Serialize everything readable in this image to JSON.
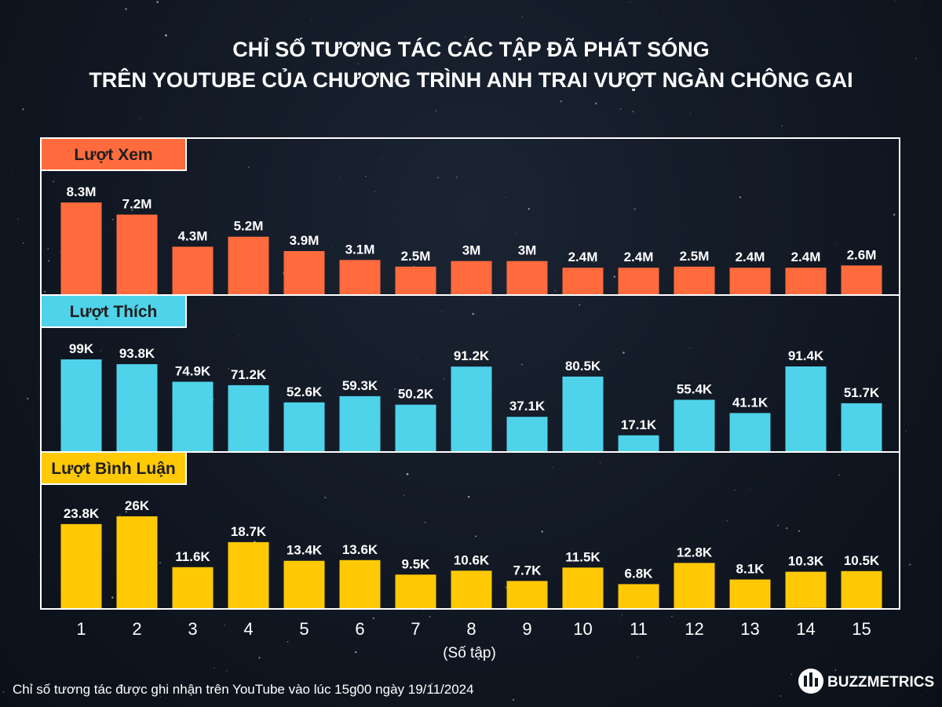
{
  "title": {
    "line1": "CHỈ SỐ TƯƠNG TÁC CÁC TẬP ĐÃ PHÁT SÓNG",
    "line2": "TRÊN YOUTUBE CỦA CHƯƠNG TRÌNH ANH TRAI VƯỢT NGÀN CHÔNG GAI"
  },
  "footnote": "Chỉ số tương tác được ghi nhận trên YouTube vào lúc 15g00 ngày 19/11/2024",
  "brand": "BUZZMETRICS",
  "colors": {
    "views": "#ff6b3d",
    "likes": "#4fd3ea",
    "comments": "#ffc906",
    "frame": "#ffffff",
    "text": "#ffffff"
  },
  "chart_data": {
    "type": "bar",
    "xlabel": "(Số tập)",
    "categories": [
      "1",
      "2",
      "3",
      "4",
      "5",
      "6",
      "7",
      "8",
      "9",
      "10",
      "11",
      "12",
      "13",
      "14",
      "15"
    ],
    "series": [
      {
        "name": "Lượt Xem",
        "color": "#ff6b3d",
        "values": [
          8300000,
          7200000,
          4300000,
          5200000,
          3900000,
          3100000,
          2500000,
          3000000,
          3000000,
          2400000,
          2400000,
          2500000,
          2400000,
          2400000,
          2600000
        ],
        "labels": [
          "8.3M",
          "7.2M",
          "4.3M",
          "5.2M",
          "3.9M",
          "3.1M",
          "2.5M",
          "3M",
          "3M",
          "2.4M",
          "2.4M",
          "2.5M",
          "2.4M",
          "2.4M",
          "2.6M"
        ]
      },
      {
        "name": "Lượt Thích",
        "color": "#4fd3ea",
        "values": [
          99000,
          93800,
          74900,
          71200,
          52600,
          59300,
          50200,
          91200,
          37100,
          80500,
          17100,
          55400,
          41100,
          91400,
          51700
        ],
        "labels": [
          "99K",
          "93.8K",
          "74.9K",
          "71.2K",
          "52.6K",
          "59.3K",
          "50.2K",
          "91.2K",
          "37.1K",
          "80.5K",
          "17.1K",
          "55.4K",
          "41.1K",
          "91.4K",
          "51.7K"
        ]
      },
      {
        "name": "Lượt Bình Luận",
        "color": "#ffc906",
        "values": [
          23800,
          26000,
          11600,
          18700,
          13400,
          13600,
          9500,
          10600,
          7700,
          11500,
          6800,
          12800,
          8100,
          10300,
          10500
        ],
        "labels": [
          "23.8K",
          "26K",
          "11.6K",
          "18.7K",
          "13.4K",
          "13.6K",
          "9.5K",
          "10.6K",
          "7.7K",
          "11.5K",
          "6.8K",
          "12.8K",
          "8.1K",
          "10.3K",
          "10.5K"
        ]
      }
    ]
  }
}
